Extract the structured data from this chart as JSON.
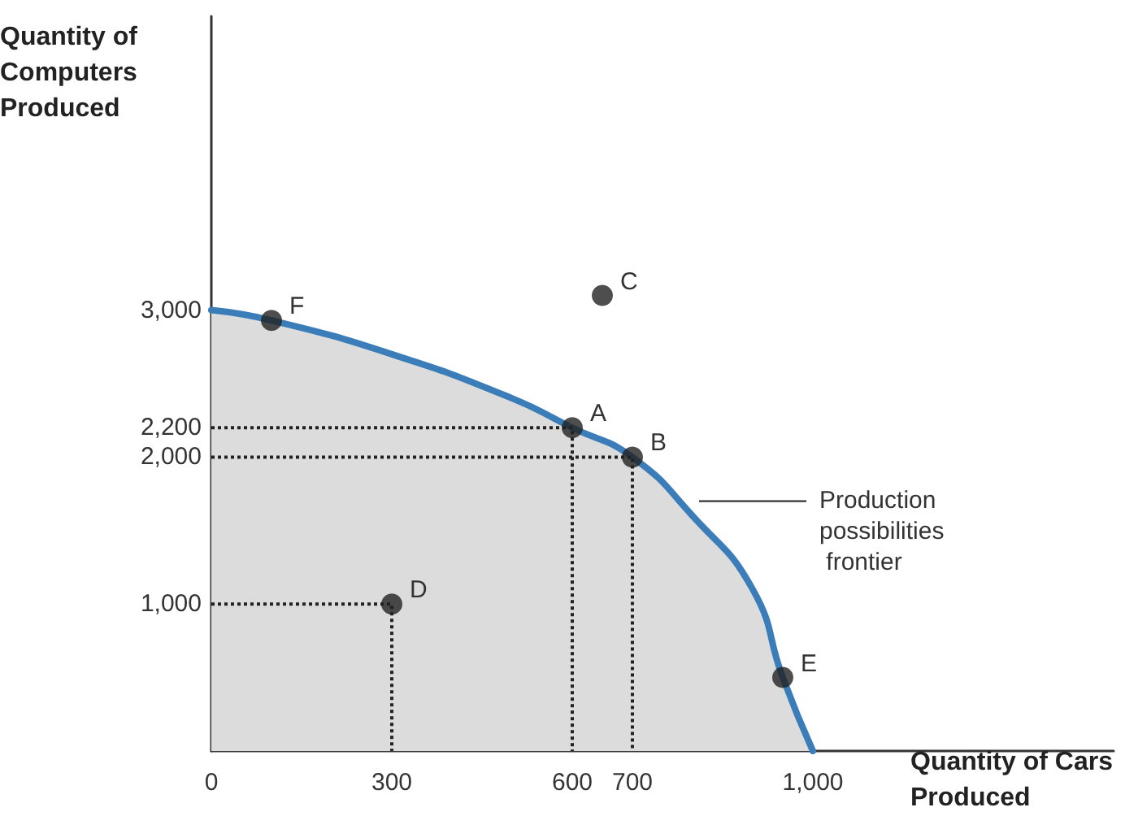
{
  "chart_data": {
    "type": "area",
    "xlabel": "Quantity of Cars Produced",
    "ylabel": "Quantity of Computers Produced",
    "xlim": [
      0,
      1500
    ],
    "ylim": [
      0,
      5000
    ],
    "xticks": [
      0,
      300,
      600,
      700,
      {
        "value": 1000,
        "label": "1,000"
      }
    ],
    "yticks": [
      {
        "value": 1000,
        "label": "1,000"
      },
      {
        "value": 2000,
        "label": "2,000"
      },
      {
        "value": 2200,
        "label": "2,200"
      },
      {
        "value": 3000,
        "label": "3,000"
      }
    ],
    "grid": false,
    "series": [
      {
        "color": "#3a7db8",
        "x": [
          0,
          100,
          300,
          500,
          600,
          700,
          800,
          900,
          950,
          1000
        ],
        "values": [
          3000,
          2930,
          2700,
          2400,
          2200,
          2000,
          1600,
          1100,
          500,
          0
        ]
      },
      {
        "type": "line",
        "color": "#222222",
        "line_style": "dotted",
        "marker": "none",
        "x": [
          0,
          600,
          600
        ],
        "values": [
          2200,
          2200,
          0
        ]
      },
      {
        "type": "line",
        "color": "#222222",
        "line_style": "dotted",
        "marker": "none",
        "x": [
          0,
          700,
          700
        ],
        "values": [
          2000,
          2000,
          0
        ]
      },
      {
        "type": "line",
        "color": "#222222",
        "line_style": "dotted",
        "marker": "none",
        "x": [
          0,
          300,
          300
        ],
        "values": [
          1000,
          1000,
          0
        ]
      },
      {
        "type": "scatter",
        "color": "#222222",
        "marker": "circle",
        "x": [
          100,
          600,
          700,
          650,
          300,
          950
        ],
        "values": [
          2930,
          2200,
          2000,
          3100,
          1000,
          500
        ]
      }
    ],
    "annotations": [
      {
        "text": "F",
        "x": 100,
        "y": 2930
      },
      {
        "text": "A",
        "x": 600,
        "y": 2200
      },
      {
        "text": "B",
        "x": 700,
        "y": 2000
      },
      {
        "text": "C",
        "x": 650,
        "y": 3100
      },
      {
        "text": "D",
        "x": 300,
        "y": 1000
      },
      {
        "text": "E",
        "x": 950,
        "y": 500
      },
      {
        "text": "Production possibilities frontier",
        "x": 800,
        "y": 1700
      }
    ]
  }
}
